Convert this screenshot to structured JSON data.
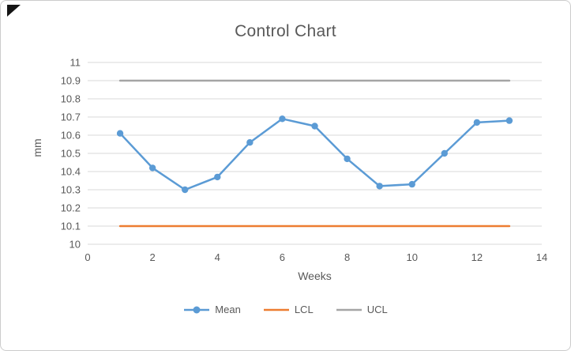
{
  "chart_data": {
    "type": "line",
    "title": "Control Chart",
    "xlabel": "Weeks",
    "ylabel": "mm",
    "xlim": [
      0,
      14
    ],
    "ylim": [
      10,
      11
    ],
    "xticks": [
      0,
      2,
      4,
      6,
      8,
      10,
      12,
      14
    ],
    "yticks": [
      10,
      10.1,
      10.2,
      10.3,
      10.4,
      10.5,
      10.6,
      10.7,
      10.8,
      10.9,
      11
    ],
    "ytick_labels": [
      "10",
      "10.1",
      "10.2",
      "10.3",
      "10.4",
      "10.5",
      "10.6",
      "10.7",
      "10.8",
      "10.9",
      "11"
    ],
    "grid": "horizontal",
    "legend_position": "bottom",
    "series": [
      {
        "name": "Mean",
        "color": "#5B9BD5",
        "marker": true,
        "width": 2.5,
        "x": [
          1,
          2,
          3,
          4,
          5,
          6,
          7,
          8,
          9,
          10,
          11,
          12,
          13
        ],
        "y": [
          10.61,
          10.42,
          10.3,
          10.37,
          10.56,
          10.69,
          10.65,
          10.47,
          10.32,
          10.33,
          10.5,
          10.67,
          10.68
        ]
      },
      {
        "name": "LCL",
        "color": "#ED7D31",
        "marker": false,
        "width": 2.5,
        "x": [
          1,
          13
        ],
        "y": [
          10.1,
          10.1
        ]
      },
      {
        "name": "UCL",
        "color": "#A5A5A5",
        "marker": false,
        "width": 2.5,
        "x": [
          1,
          13
        ],
        "y": [
          10.9,
          10.9
        ]
      }
    ],
    "text_color": "#595959",
    "gridline_color": "#D9D9D9"
  }
}
